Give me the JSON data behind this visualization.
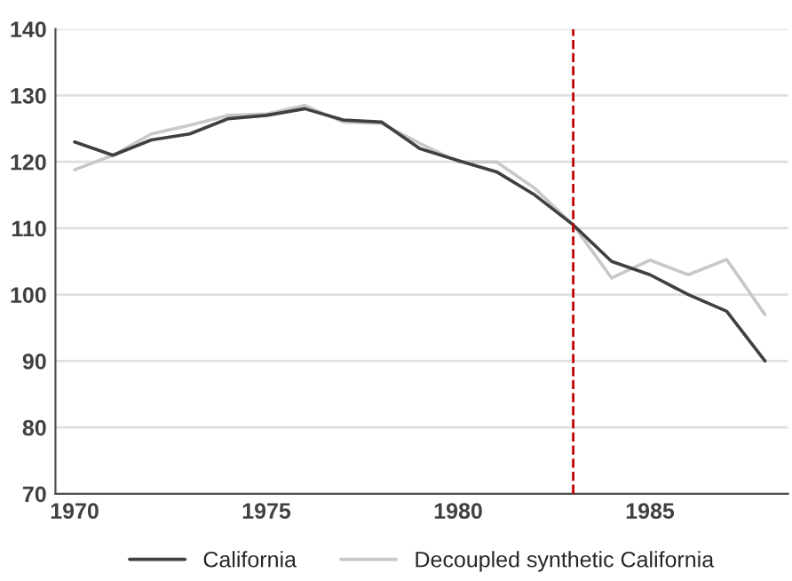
{
  "chart_data": {
    "type": "line",
    "x": [
      1970,
      1971,
      1972,
      1973,
      1974,
      1975,
      1976,
      1977,
      1978,
      1979,
      1980,
      1981,
      1982,
      1983,
      1984,
      1985,
      1986,
      1987,
      1988
    ],
    "series": [
      {
        "name": "California",
        "color": "#404040",
        "values": [
          123,
          121,
          123.3,
          124.2,
          126.5,
          127,
          128,
          126.3,
          126,
          122,
          120.2,
          118.5,
          115,
          110.5,
          105,
          103,
          100,
          97.5,
          90
        ]
      },
      {
        "name": "Decoupled synthetic California",
        "color": "#c8c8c8",
        "values": [
          118.8,
          121,
          124.2,
          125.5,
          127,
          127.2,
          128.5,
          126,
          125.8,
          122.8,
          120,
          120,
          116,
          110.5,
          102.5,
          105.2,
          103,
          105.3,
          97
        ]
      }
    ],
    "xlim": [
      1969.5,
      1988.6
    ],
    "xticks": [
      1970,
      1975,
      1980,
      1985
    ],
    "ylim": [
      70,
      140
    ],
    "yticks": [
      70,
      80,
      90,
      100,
      110,
      120,
      130,
      140
    ],
    "ref_lines": [
      {
        "axis": "x",
        "value": 1983,
        "color": "#c00000",
        "line_style": "dashed"
      }
    ],
    "grid": "y",
    "legend": "bottom",
    "marker": "none",
    "line_style": "solid"
  }
}
